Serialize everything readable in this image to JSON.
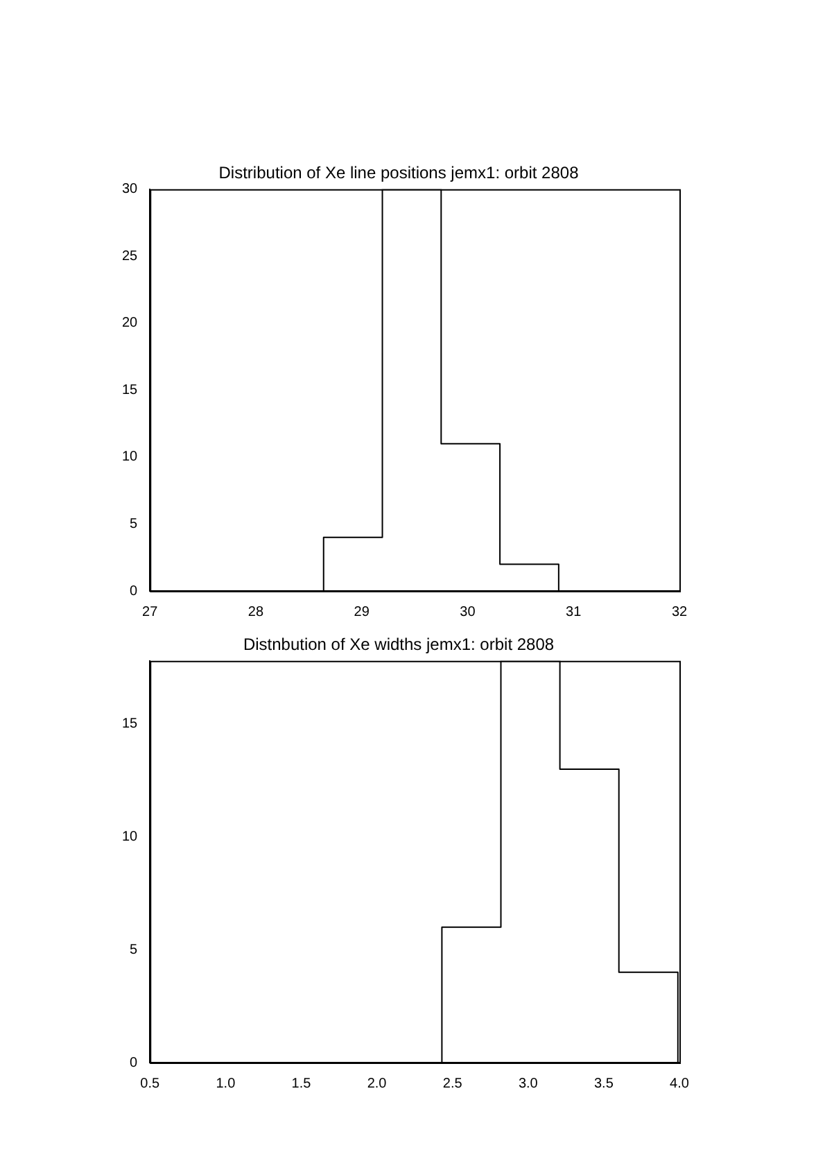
{
  "chart_data": [
    {
      "type": "histogram",
      "title": "Distribution of Xe line positions jemx1: orbit 2808",
      "bins": [
        28.64,
        29.195,
        29.75,
        30.305,
        30.86
      ],
      "values": [
        4,
        30,
        11,
        2
      ],
      "color": "#000000",
      "xlim": [
        27,
        32
      ],
      "xticks": [
        27,
        28,
        29,
        30,
        31,
        32
      ],
      "ylim": [
        0,
        30
      ],
      "yticks": [
        0,
        5,
        10,
        15,
        20,
        25,
        30
      ],
      "grid": false,
      "legend": false
    },
    {
      "type": "histogram",
      "title": "Distnbution of Xe widths jemx1: orbit 2808",
      "bins": [
        2.43,
        2.82,
        3.21,
        3.6,
        3.99
      ],
      "values": [
        6,
        17.8,
        13,
        4
      ],
      "color": "#000000",
      "xlim": [
        0.5,
        4.0
      ],
      "xticks": [
        {
          "value": 0.5,
          "label": "0.5"
        },
        {
          "value": 1,
          "label": "1.0"
        },
        {
          "value": 1.5,
          "label": "1.5"
        },
        {
          "value": 2,
          "label": "2.0"
        },
        {
          "value": 2.5,
          "label": "2.5"
        },
        {
          "value": 3,
          "label": "3.0"
        },
        {
          "value": 3.5,
          "label": "3.5"
        },
        {
          "value": 4,
          "label": "4.0"
        }
      ],
      "ylim": [
        0,
        17.8
      ],
      "yticks": [
        0,
        5,
        10,
        15
      ],
      "grid": false,
      "legend": false
    }
  ]
}
